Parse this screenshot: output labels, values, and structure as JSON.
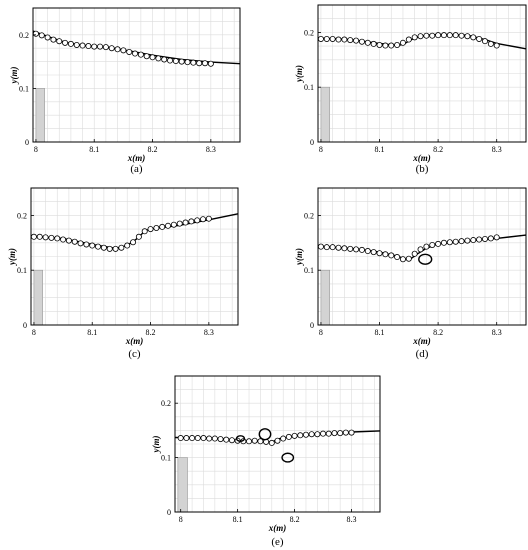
{
  "figure": {
    "title": ""
  },
  "chart_data": [
    {
      "type": "line",
      "panel_label": "(a)",
      "xlabel": "x(m)",
      "ylabel": "y(m)",
      "xlim": [
        7.995,
        8.35
      ],
      "ylim": [
        0,
        0.25
      ],
      "xticks": [
        "8",
        "8.1",
        "8.2",
        "8.3"
      ],
      "yticks": [
        "0",
        "0.1",
        "0.2"
      ],
      "xtick_values": [
        8,
        8.1,
        8.2,
        8.3
      ],
      "ytick_values": [
        0,
        0.1,
        0.2
      ],
      "grid": true,
      "obstacle": {
        "x": [
          8.0,
          8.015
        ],
        "y": [
          0,
          0.1
        ]
      },
      "series": [
        {
          "style": "solid-line",
          "points": [
            [
              7.995,
              0.207
            ],
            [
              8.02,
              0.197
            ],
            [
              8.05,
              0.186
            ],
            [
              8.08,
              0.18
            ],
            [
              8.11,
              0.178
            ],
            [
              8.15,
              0.172
            ],
            [
              8.2,
              0.162
            ],
            [
              8.25,
              0.154
            ],
            [
              8.3,
              0.149
            ],
            [
              8.35,
              0.146
            ]
          ]
        },
        {
          "style": "open-circles",
          "points": [
            [
              8.0,
              0.202
            ],
            [
              8.01,
              0.199
            ],
            [
              8.02,
              0.195
            ],
            [
              8.03,
              0.191
            ],
            [
              8.04,
              0.188
            ],
            [
              8.05,
              0.185
            ],
            [
              8.06,
              0.183
            ],
            [
              8.07,
              0.181
            ],
            [
              8.08,
              0.18
            ],
            [
              8.09,
              0.179
            ],
            [
              8.1,
              0.178
            ],
            [
              8.11,
              0.178
            ],
            [
              8.12,
              0.177
            ],
            [
              8.13,
              0.175
            ],
            [
              8.14,
              0.173
            ],
            [
              8.15,
              0.171
            ],
            [
              8.16,
              0.168
            ],
            [
              8.17,
              0.165
            ],
            [
              8.18,
              0.163
            ],
            [
              8.19,
              0.16
            ],
            [
              8.2,
              0.158
            ],
            [
              8.21,
              0.156
            ],
            [
              8.22,
              0.154
            ],
            [
              8.23,
              0.152
            ],
            [
              8.24,
              0.151
            ],
            [
              8.25,
              0.15
            ],
            [
              8.26,
              0.149
            ],
            [
              8.27,
              0.148
            ],
            [
              8.28,
              0.147
            ],
            [
              8.29,
              0.147
            ],
            [
              8.3,
              0.146
            ]
          ]
        }
      ]
    },
    {
      "type": "line",
      "panel_label": "(b)",
      "xlabel": "x(m)",
      "ylabel": "y(m)",
      "xlim": [
        7.995,
        8.35
      ],
      "ylim": [
        0,
        0.25
      ],
      "xticks": [
        "8",
        "8.1",
        "8.2",
        "8.3"
      ],
      "yticks": [
        "0",
        "0.1",
        "0.2"
      ],
      "xtick_values": [
        8,
        8.1,
        8.2,
        8.3
      ],
      "ytick_values": [
        0,
        0.1,
        0.2
      ],
      "grid": true,
      "obstacle": {
        "x": [
          8.0,
          8.015
        ],
        "y": [
          0,
          0.1
        ]
      },
      "series": [
        {
          "style": "solid-line",
          "points": [
            [
              7.995,
              0.19
            ],
            [
              8.05,
              0.187
            ],
            [
              8.1,
              0.18
            ],
            [
              8.13,
              0.176
            ],
            [
              8.14,
              0.178
            ],
            [
              8.15,
              0.184
            ],
            [
              8.16,
              0.19
            ],
            [
              8.18,
              0.195
            ],
            [
              8.2,
              0.196
            ],
            [
              8.25,
              0.195
            ],
            [
              8.28,
              0.187
            ],
            [
              8.3,
              0.18
            ],
            [
              8.35,
              0.17
            ]
          ]
        },
        {
          "style": "open-circles",
          "points": [
            [
              8.0,
              0.188
            ],
            [
              8.01,
              0.188
            ],
            [
              8.02,
              0.188
            ],
            [
              8.03,
              0.187
            ],
            [
              8.04,
              0.187
            ],
            [
              8.05,
              0.186
            ],
            [
              8.06,
              0.185
            ],
            [
              8.07,
              0.183
            ],
            [
              8.08,
              0.181
            ],
            [
              8.09,
              0.179
            ],
            [
              8.1,
              0.177
            ],
            [
              8.11,
              0.176
            ],
            [
              8.12,
              0.176
            ],
            [
              8.13,
              0.177
            ],
            [
              8.14,
              0.181
            ],
            [
              8.15,
              0.187
            ],
            [
              8.16,
              0.191
            ],
            [
              8.17,
              0.193
            ],
            [
              8.18,
              0.194
            ],
            [
              8.19,
              0.194
            ],
            [
              8.2,
              0.195
            ],
            [
              8.21,
              0.195
            ],
            [
              8.22,
              0.195
            ],
            [
              8.23,
              0.195
            ],
            [
              8.24,
              0.194
            ],
            [
              8.25,
              0.193
            ],
            [
              8.26,
              0.191
            ],
            [
              8.27,
              0.188
            ],
            [
              8.28,
              0.184
            ],
            [
              8.29,
              0.179
            ],
            [
              8.3,
              0.176
            ]
          ]
        }
      ]
    },
    {
      "type": "line",
      "panel_label": "(c)",
      "xlabel": "x(m)",
      "ylabel": "y(m)",
      "xlim": [
        7.995,
        8.35
      ],
      "ylim": [
        0,
        0.25
      ],
      "xticks": [
        "8",
        "8.1",
        "8.2",
        "8.3"
      ],
      "yticks": [
        "0",
        "0.1",
        "0.2"
      ],
      "xtick_values": [
        8,
        8.1,
        8.2,
        8.3
      ],
      "ytick_values": [
        0,
        0.1,
        0.2
      ],
      "grid": true,
      "obstacle": {
        "x": [
          8.0,
          8.015
        ],
        "y": [
          0,
          0.1
        ]
      },
      "series": [
        {
          "style": "solid-line",
          "points": [
            [
              7.995,
              0.162
            ],
            [
              8.05,
              0.158
            ],
            [
              8.1,
              0.147
            ],
            [
              8.14,
              0.14
            ],
            [
              8.16,
              0.145
            ],
            [
              8.18,
              0.16
            ],
            [
              8.19,
              0.172
            ],
            [
              8.2,
              0.175
            ],
            [
              8.25,
              0.182
            ],
            [
              8.3,
              0.192
            ],
            [
              8.35,
              0.203
            ]
          ]
        },
        {
          "style": "open-circles",
          "points": [
            [
              8.0,
              0.161
            ],
            [
              8.01,
              0.161
            ],
            [
              8.02,
              0.16
            ],
            [
              8.03,
              0.159
            ],
            [
              8.04,
              0.158
            ],
            [
              8.05,
              0.156
            ],
            [
              8.06,
              0.154
            ],
            [
              8.07,
              0.152
            ],
            [
              8.08,
              0.149
            ],
            [
              8.09,
              0.147
            ],
            [
              8.1,
              0.145
            ],
            [
              8.11,
              0.143
            ],
            [
              8.12,
              0.141
            ],
            [
              8.13,
              0.139
            ],
            [
              8.14,
              0.139
            ],
            [
              8.15,
              0.141
            ],
            [
              8.16,
              0.145
            ],
            [
              8.17,
              0.151
            ],
            [
              8.18,
              0.161
            ],
            [
              8.19,
              0.171
            ],
            [
              8.2,
              0.175
            ],
            [
              8.21,
              0.177
            ],
            [
              8.22,
              0.179
            ],
            [
              8.23,
              0.181
            ],
            [
              8.24,
              0.183
            ],
            [
              8.25,
              0.185
            ],
            [
              8.26,
              0.187
            ],
            [
              8.27,
              0.189
            ],
            [
              8.28,
              0.191
            ],
            [
              8.29,
              0.193
            ],
            [
              8.3,
              0.194
            ]
          ]
        }
      ]
    },
    {
      "type": "line",
      "panel_label": "(d)",
      "xlabel": "x(m)",
      "ylabel": "y(m)",
      "xlim": [
        7.995,
        8.35
      ],
      "ylim": [
        0,
        0.25
      ],
      "xticks": [
        "8",
        "8.1",
        "8.2",
        "8.3"
      ],
      "yticks": [
        "0",
        "0.1",
        "0.2"
      ],
      "xtick_values": [
        8,
        8.1,
        8.2,
        8.3
      ],
      "ytick_values": [
        0,
        0.1,
        0.2
      ],
      "grid": true,
      "obstacle": {
        "x": [
          8.0,
          8.015
        ],
        "y": [
          0,
          0.1
        ]
      },
      "series": [
        {
          "style": "solid-line",
          "points": [
            [
              7.995,
              0.144
            ],
            [
              8.05,
              0.14
            ],
            [
              8.1,
              0.133
            ],
            [
              8.13,
              0.126
            ],
            [
              8.145,
              0.12
            ],
            [
              8.155,
              0.122
            ],
            [
              8.165,
              0.13
            ],
            [
              8.18,
              0.14
            ],
            [
              8.2,
              0.148
            ],
            [
              8.25,
              0.153
            ],
            [
              8.3,
              0.158
            ],
            [
              8.35,
              0.164
            ]
          ]
        },
        {
          "style": "open-circles",
          "points": [
            [
              8.0,
              0.143
            ],
            [
              8.01,
              0.142
            ],
            [
              8.02,
              0.142
            ],
            [
              8.03,
              0.141
            ],
            [
              8.04,
              0.14
            ],
            [
              8.05,
              0.139
            ],
            [
              8.06,
              0.138
            ],
            [
              8.07,
              0.137
            ],
            [
              8.08,
              0.135
            ],
            [
              8.09,
              0.133
            ],
            [
              8.1,
              0.131
            ],
            [
              8.11,
              0.129
            ],
            [
              8.12,
              0.127
            ],
            [
              8.13,
              0.124
            ],
            [
              8.14,
              0.12
            ],
            [
              8.15,
              0.121
            ],
            [
              8.16,
              0.13
            ],
            [
              8.17,
              0.138
            ],
            [
              8.18,
              0.143
            ],
            [
              8.19,
              0.146
            ],
            [
              8.2,
              0.148
            ],
            [
              8.21,
              0.15
            ],
            [
              8.22,
              0.151
            ],
            [
              8.23,
              0.152
            ],
            [
              8.24,
              0.153
            ],
            [
              8.25,
              0.154
            ],
            [
              8.26,
              0.155
            ],
            [
              8.27,
              0.156
            ],
            [
              8.28,
              0.157
            ],
            [
              8.29,
              0.158
            ],
            [
              8.3,
              0.16
            ]
          ]
        },
        {
          "style": "vortex-loop",
          "center": [
            8.178,
            0.12
          ],
          "radii": [
            0.011,
            0.009
          ]
        }
      ]
    },
    {
      "type": "line",
      "panel_label": "(e)",
      "xlabel": "x(m)",
      "ylabel": "y(m)",
      "xlim": [
        7.99,
        8.35
      ],
      "ylim": [
        0,
        0.25
      ],
      "xticks": [
        "8",
        "8.1",
        "8.2",
        "8.3"
      ],
      "yticks": [
        "0",
        "0.1",
        "0.2"
      ],
      "xtick_values": [
        8,
        8.1,
        8.2,
        8.3
      ],
      "ytick_values": [
        0,
        0.1,
        0.2
      ],
      "grid": true,
      "obstacle": {
        "x": [
          7.995,
          8.012
        ],
        "y": [
          0,
          0.1
        ]
      },
      "series": [
        {
          "style": "solid-line",
          "points": [
            [
              7.99,
              0.137
            ],
            [
              8.05,
              0.136
            ],
            [
              8.09,
              0.133
            ],
            [
              8.11,
              0.13
            ],
            [
              8.13,
              0.131
            ],
            [
              8.15,
              0.13
            ],
            [
              8.16,
              0.128
            ],
            [
              8.17,
              0.134
            ],
            [
              8.2,
              0.14
            ],
            [
              8.25,
              0.144
            ],
            [
              8.3,
              0.147
            ],
            [
              8.35,
              0.149
            ]
          ]
        },
        {
          "style": "open-circles",
          "points": [
            [
              8.0,
              0.136
            ],
            [
              8.01,
              0.136
            ],
            [
              8.02,
              0.136
            ],
            [
              8.03,
              0.136
            ],
            [
              8.04,
              0.136
            ],
            [
              8.05,
              0.135
            ],
            [
              8.06,
              0.135
            ],
            [
              8.07,
              0.134
            ],
            [
              8.08,
              0.133
            ],
            [
              8.09,
              0.132
            ],
            [
              8.1,
              0.131
            ],
            [
              8.11,
              0.13
            ],
            [
              8.12,
              0.13
            ],
            [
              8.13,
              0.131
            ],
            [
              8.14,
              0.13
            ],
            [
              8.15,
              0.129
            ],
            [
              8.16,
              0.127
            ],
            [
              8.17,
              0.131
            ],
            [
              8.18,
              0.135
            ],
            [
              8.19,
              0.138
            ],
            [
              8.2,
              0.14
            ],
            [
              8.21,
              0.141
            ],
            [
              8.22,
              0.142
            ],
            [
              8.23,
              0.143
            ],
            [
              8.24,
              0.143
            ],
            [
              8.25,
              0.144
            ],
            [
              8.26,
              0.144
            ],
            [
              8.27,
              0.145
            ],
            [
              8.28,
              0.145
            ],
            [
              8.29,
              0.146
            ],
            [
              8.3,
              0.146
            ]
          ]
        },
        {
          "style": "vortex-loop",
          "center": [
            8.188,
            0.1
          ],
          "radii": [
            0.01,
            0.008
          ]
        },
        {
          "style": "vortex-loop",
          "center": [
            8.148,
            0.143
          ],
          "radii": [
            0.01,
            0.01
          ]
        },
        {
          "style": "vortex-loop",
          "center": [
            8.105,
            0.135
          ],
          "radii": [
            0.007,
            0.005
          ]
        }
      ]
    }
  ]
}
